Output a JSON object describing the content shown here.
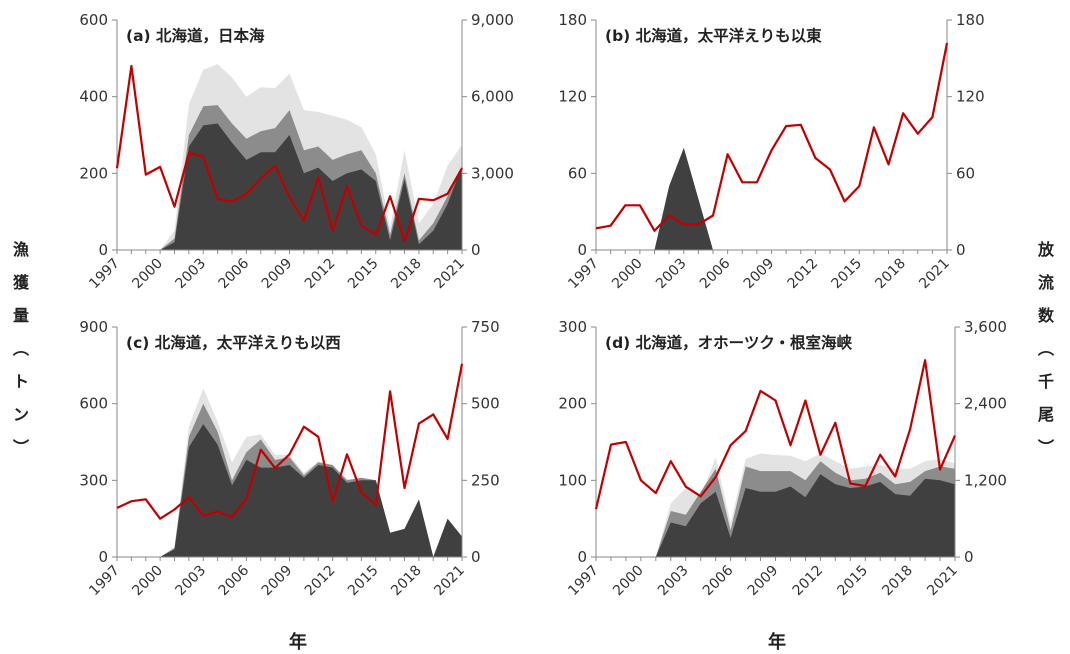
{
  "left_axis_label": [
    "漁",
    "獲",
    "量",
    "︵",
    "ト",
    "ン",
    "︶"
  ],
  "right_axis_label": [
    "放",
    "流",
    "数",
    "︵",
    "千",
    "尾",
    "︶"
  ],
  "x_axis_label": "年",
  "colors": {
    "catch_dark": "#404040",
    "catch_mid": "#8c8c8c",
    "catch_light": "#e3e3e3",
    "release_line": "#c00000",
    "axis": "#8a8a8a"
  },
  "chart_data": [
    {
      "type": "area",
      "title": "(a) 北海道，日本海",
      "x": [
        1997,
        1998,
        1999,
        2000,
        2001,
        2002,
        2003,
        2004,
        2005,
        2006,
        2007,
        2008,
        2009,
        2010,
        2011,
        2012,
        2013,
        2014,
        2015,
        2016,
        2017,
        2018,
        2019,
        2020,
        2021
      ],
      "xticks": [
        "1997",
        "2000",
        "2003",
        "2006",
        "2009",
        "2012",
        "2015",
        "2018",
        "2021"
      ],
      "ylim_left": [
        0,
        600
      ],
      "yticks_left": [
        "0",
        "200",
        "400",
        "600"
      ],
      "ylim_right": [
        0,
        9000
      ],
      "yticks_right": [
        "0",
        "3,000",
        "6,000",
        "9,000"
      ],
      "series": [
        {
          "axis": "left",
          "layer": "dark",
          "values": [
            0,
            0,
            0,
            0,
            20,
            270,
            325,
            330,
            280,
            235,
            255,
            255,
            300,
            200,
            215,
            180,
            200,
            210,
            180,
            25,
            185,
            15,
            50,
            120,
            220
          ]
        },
        {
          "axis": "left",
          "layer": "mid",
          "values": [
            0,
            0,
            0,
            0,
            30,
            300,
            375,
            378,
            330,
            290,
            310,
            318,
            365,
            260,
            270,
            235,
            250,
            260,
            200,
            40,
            200,
            25,
            70,
            140,
            220
          ]
        },
        {
          "axis": "left",
          "layer": "light",
          "values": [
            0,
            0,
            0,
            0,
            50,
            380,
            470,
            485,
            450,
            400,
            425,
            422,
            460,
            365,
            360,
            350,
            340,
            320,
            250,
            60,
            260,
            70,
            120,
            220,
            275
          ]
        },
        {
          "axis": "right",
          "layer": "line",
          "values": [
            3200,
            7200,
            2950,
            3250,
            1700,
            3800,
            3650,
            2000,
            1900,
            2200,
            2800,
            3300,
            2050,
            1150,
            2850,
            750,
            2500,
            950,
            600,
            2100,
            350,
            2000,
            1950,
            2200,
            3200
          ]
        }
      ]
    },
    {
      "type": "area",
      "title": "(b) 北海道，太平洋えりも以東",
      "x": [
        1997,
        1998,
        1999,
        2000,
        2001,
        2002,
        2003,
        2004,
        2005,
        2006,
        2007,
        2008,
        2009,
        2010,
        2011,
        2012,
        2013,
        2014,
        2015,
        2016,
        2017,
        2018,
        2019,
        2020,
        2021
      ],
      "xticks": [
        "1997",
        "2000",
        "2003",
        "2006",
        "2009",
        "2012",
        "2015",
        "2018",
        "2021"
      ],
      "ylim_left": [
        0,
        180
      ],
      "yticks_left": [
        "0",
        "60",
        "120",
        "180"
      ],
      "ylim_right": [
        0,
        180
      ],
      "yticks_right": [
        "0",
        "60",
        "120",
        "180"
      ],
      "series": [
        {
          "axis": "left",
          "layer": "dark",
          "values": [
            0,
            0,
            0,
            0,
            0,
            50,
            80,
            40,
            0,
            0,
            0,
            0,
            0,
            0,
            0,
            0,
            0,
            0,
            0,
            0,
            0,
            0,
            0,
            0,
            0
          ]
        },
        {
          "axis": "right",
          "layer": "line",
          "values": [
            17,
            19,
            35,
            35,
            15,
            27,
            20,
            20,
            27,
            75,
            53,
            53,
            78,
            97,
            98,
            72,
            63,
            38,
            50,
            96,
            67,
            107,
            91,
            104,
            162
          ]
        }
      ]
    },
    {
      "type": "area",
      "title": "(c) 北海道，太平洋えりも以西",
      "x": [
        1997,
        1998,
        1999,
        2000,
        2001,
        2002,
        2003,
        2004,
        2005,
        2006,
        2007,
        2008,
        2009,
        2010,
        2011,
        2012,
        2013,
        2014,
        2015,
        2016,
        2017,
        2018,
        2019,
        2020,
        2021
      ],
      "xticks": [
        "1997",
        "2000",
        "2003",
        "2006",
        "2009",
        "2012",
        "2015",
        "2018",
        "2021"
      ],
      "ylim_left": [
        0,
        900
      ],
      "yticks_left": [
        "0",
        "300",
        "600",
        "900"
      ],
      "ylim_right": [
        0,
        750
      ],
      "yticks_right": [
        "0",
        "250",
        "500",
        "750"
      ],
      "series": [
        {
          "axis": "left",
          "layer": "dark",
          "values": [
            0,
            0,
            0,
            0,
            30,
            430,
            520,
            440,
            280,
            380,
            350,
            350,
            360,
            310,
            360,
            350,
            290,
            300,
            300,
            95,
            110,
            225,
            0,
            150,
            80
          ]
        },
        {
          "axis": "left",
          "layer": "mid",
          "values": [
            0,
            0,
            0,
            0,
            35,
            470,
            600,
            490,
            300,
            410,
            460,
            380,
            390,
            320,
            370,
            360,
            300,
            310,
            300,
            95,
            110,
            225,
            0,
            150,
            80
          ]
        },
        {
          "axis": "left",
          "layer": "light",
          "values": [
            0,
            0,
            0,
            0,
            40,
            510,
            660,
            530,
            370,
            470,
            480,
            400,
            400,
            330,
            375,
            360,
            305,
            310,
            300,
            95,
            110,
            225,
            0,
            150,
            80
          ]
        },
        {
          "axis": "right",
          "layer": "line",
          "values": [
            160,
            182,
            188,
            125,
            155,
            195,
            135,
            148,
            130,
            190,
            350,
            290,
            335,
            425,
            392,
            180,
            335,
            210,
            170,
            540,
            225,
            435,
            465,
            385,
            630
          ]
        }
      ]
    },
    {
      "type": "area",
      "title": "(d) 北海道，オホーツク・根室海峡",
      "x": [
        1997,
        1998,
        1999,
        2000,
        2001,
        2002,
        2003,
        2004,
        2005,
        2006,
        2007,
        2008,
        2009,
        2010,
        2011,
        2012,
        2013,
        2014,
        2015,
        2016,
        2017,
        2018,
        2019,
        2020,
        2021
      ],
      "xticks": [
        "1997",
        "2000",
        "2003",
        "2006",
        "2009",
        "2012",
        "2015",
        "2018",
        "2021"
      ],
      "ylim_left": [
        0,
        300
      ],
      "yticks_left": [
        "0",
        "100",
        "200",
        "300"
      ],
      "ylim_right": [
        0,
        3600
      ],
      "yticks_right": [
        "0",
        "1,200",
        "2,400",
        "3,600"
      ],
      "series": [
        {
          "axis": "left",
          "layer": "dark",
          "values": [
            0,
            0,
            0,
            0,
            0,
            45,
            40,
            70,
            85,
            25,
            90,
            85,
            85,
            92,
            78,
            108,
            95,
            90,
            92,
            98,
            82,
            80,
            102,
            100,
            95
          ]
        },
        {
          "axis": "left",
          "layer": "mid",
          "values": [
            0,
            0,
            0,
            0,
            0,
            60,
            55,
            85,
            115,
            35,
            118,
            112,
            112,
            112,
            100,
            125,
            110,
            100,
            102,
            110,
            95,
            98,
            112,
            118,
            115
          ]
        },
        {
          "axis": "left",
          "layer": "light",
          "values": [
            0,
            0,
            0,
            0,
            0,
            70,
            90,
            80,
            130,
            45,
            128,
            135,
            133,
            132,
            125,
            135,
            125,
            115,
            118,
            120,
            115,
            115,
            125,
            128,
            122
          ]
        },
        {
          "axis": "right",
          "layer": "line",
          "values": [
            750,
            1760,
            1800,
            1200,
            1000,
            1500,
            1100,
            950,
            1250,
            1750,
            1970,
            2600,
            2450,
            1750,
            2450,
            1600,
            2100,
            1150,
            1110,
            1600,
            1260,
            2000,
            3080,
            1370,
            1900
          ]
        }
      ]
    }
  ]
}
